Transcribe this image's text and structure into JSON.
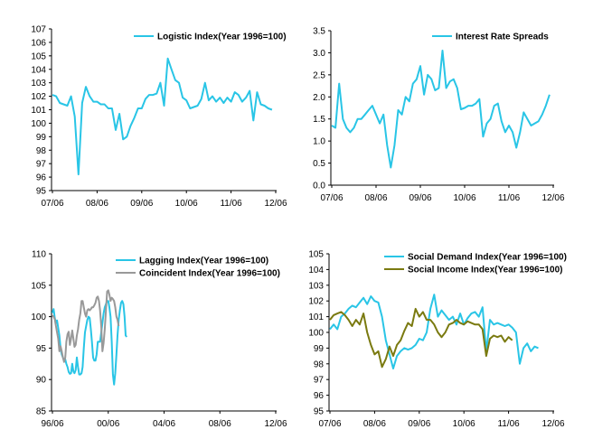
{
  "chart_data": [
    {
      "id": "logistic",
      "type": "line",
      "ylim": [
        95,
        107
      ],
      "yticks": [
        "95",
        "96",
        "97",
        "98",
        "99",
        "100",
        "101",
        "102",
        "103",
        "104",
        "105",
        "106",
        "107"
      ],
      "xlabels": [
        "07/06",
        "08/06",
        "09/06",
        "10/06",
        "11/06",
        "12/06"
      ],
      "xlabel_index": [
        0,
        12,
        24,
        36,
        48,
        60
      ],
      "legend_position": "top-right",
      "series": [
        {
          "name": "Logistic Index(Year 1996=100)",
          "color": "#29c5e6",
          "values": [
            102.1,
            102.0,
            101.5,
            101.4,
            101.3,
            102.0,
            100.5,
            96.2,
            101.5,
            102.7,
            102.0,
            101.6,
            101.6,
            101.4,
            101.4,
            101.1,
            101.1,
            99.5,
            100.7,
            98.8,
            99.0,
            99.8,
            100.4,
            101.1,
            101.1,
            101.8,
            102.1,
            102.1,
            102.2,
            103.0,
            101.3,
            104.8,
            104.0,
            103.2,
            103.0,
            101.9,
            101.7,
            101.1,
            101.2,
            101.3,
            101.8,
            103.0,
            101.7,
            102.0,
            101.6,
            101.9,
            101.5,
            101.9,
            101.6,
            102.3,
            102.1,
            101.6,
            101.9,
            102.4,
            100.2,
            102.3,
            101.4,
            101.3,
            101.1,
            101.0
          ]
        }
      ]
    },
    {
      "id": "spreads",
      "type": "line",
      "ylim": [
        0,
        3.5
      ],
      "yticks": [
        "0.0",
        "0.5",
        "1.0",
        "1.5",
        "2.0",
        "2.5",
        "3.0",
        "3.5"
      ],
      "xlabels": [
        "07/06",
        "08/06",
        "09/06",
        "10/06",
        "11/06",
        "12/06"
      ],
      "xlabel_index": [
        0,
        12,
        24,
        36,
        48,
        60
      ],
      "legend_position": "top-right",
      "series": [
        {
          "name": "Interest Rate Spreads",
          "color": "#29c5e6",
          "values": [
            1.35,
            1.3,
            2.3,
            1.5,
            1.3,
            1.2,
            1.3,
            1.5,
            1.5,
            1.6,
            1.7,
            1.8,
            1.6,
            1.4,
            1.6,
            0.9,
            0.4,
            0.9,
            1.7,
            1.6,
            2.0,
            1.9,
            2.3,
            2.4,
            2.7,
            2.05,
            2.5,
            2.4,
            2.15,
            2.2,
            3.05,
            2.2,
            2.35,
            2.4,
            2.2,
            1.72,
            1.75,
            1.8,
            1.8,
            1.85,
            1.95,
            1.1,
            1.4,
            1.5,
            1.8,
            1.85,
            1.45,
            1.2,
            1.35,
            1.2,
            0.85,
            1.2,
            1.65,
            1.5,
            1.35,
            1.4,
            1.45,
            1.6,
            1.8,
            2.05
          ]
        }
      ]
    },
    {
      "id": "lagging-coincident",
      "type": "line",
      "ylim": [
        85,
        110
      ],
      "yticks": [
        "85",
        "90",
        "95",
        "100",
        "105",
        "110"
      ],
      "xlabels": [
        "96/06",
        "00/06",
        "04/06",
        "08/06",
        "12/06"
      ],
      "xlabel_index": [
        0,
        48,
        96,
        144,
        192
      ],
      "legend_position": "top-right",
      "series": [
        {
          "name": "Lagging Index(Year 1996=100)",
          "color": "#29c5e6",
          "values": [
            100.6,
            101.2,
            99.8,
            99.0,
            99.4,
            98.2,
            97.0,
            95.0,
            94.0,
            93.5,
            93.0,
            93.2,
            92.5,
            92.0,
            91.2,
            90.9,
            91.0,
            92.5,
            91.3,
            91.0,
            91.5,
            93.5,
            92.0,
            90.8,
            90.8,
            91.0,
            92.0,
            95.0,
            97.5,
            98.5,
            99.5,
            100.0,
            99.8,
            98.0,
            96.0,
            93.5,
            93.0,
            93.0,
            94.0,
            96.0,
            96.0,
            96.0,
            97.5,
            99.0,
            100.5,
            101.5,
            102.0,
            102.5,
            102.5,
            101.5,
            100.0,
            96.0,
            90.8,
            89.2,
            91.0,
            94.0,
            97.0,
            99.5,
            101.0,
            102.2,
            102.5,
            102.0,
            100.0,
            97.0,
            96.8
          ]
        },
        {
          "name": "Coincident Index(Year 1996=100)",
          "color": "#999999",
          "values": [
            100.2,
            100.0,
            99.6,
            98.5,
            97.5,
            96.5,
            94.5,
            95.3,
            94.5,
            93.5,
            92.8,
            93.5,
            96.0,
            97.2,
            97.6,
            95.5,
            96.5,
            97.8,
            96.5,
            95.2,
            95.5,
            97.0,
            98.0,
            99.5,
            100.5,
            102.5,
            102.5,
            101.5,
            100.5,
            100.0,
            101.0,
            101.2,
            101.0,
            101.2,
            101.5,
            101.5,
            101.8,
            102.2,
            103.0,
            103.2,
            102.5,
            101.0,
            98.5,
            94.5,
            95.8,
            98.0,
            101.0,
            104.0,
            104.2,
            103.5,
            102.5,
            103.0,
            102.8,
            102.5,
            101.5,
            100.0,
            99.5,
            98.5
          ]
        }
      ]
    },
    {
      "id": "social",
      "type": "line",
      "ylim": [
        95,
        105
      ],
      "yticks": [
        "95",
        "96",
        "97",
        "98",
        "99",
        "100",
        "101",
        "102",
        "103",
        "104",
        "105"
      ],
      "xlabels": [
        "07/06",
        "08/06",
        "09/06",
        "10/06",
        "11/06",
        "12/06"
      ],
      "xlabel_index": [
        0,
        12,
        24,
        36,
        48,
        60
      ],
      "legend_position": "top-left",
      "series": [
        {
          "name": "Social Demand Index(Year 1996=100)",
          "color": "#29c5e6",
          "values": [
            100.2,
            100.5,
            100.2,
            101.0,
            101.2,
            101.5,
            101.7,
            101.6,
            101.9,
            102.2,
            101.8,
            102.3,
            102.0,
            101.9,
            101.0,
            99.5,
            98.6,
            97.7,
            98.5,
            98.8,
            99.0,
            98.9,
            99.0,
            99.2,
            99.6,
            99.5,
            100.0,
            101.5,
            102.4,
            101.0,
            101.4,
            101.1,
            100.8,
            101.0,
            100.5,
            101.2,
            100.5,
            100.9,
            101.2,
            101.3,
            101.0,
            101.6,
            98.8,
            100.8,
            100.5,
            100.6,
            100.5,
            100.4,
            100.5,
            100.3,
            100.0,
            98.0,
            99.0,
            99.3,
            98.8,
            99.1,
            99.0
          ]
        },
        {
          "name": "Social Income Index(Year 1996=100)",
          "color": "#7a7a10",
          "values": [
            100.8,
            101.1,
            101.2,
            101.3,
            101.1,
            100.8,
            100.4,
            100.8,
            100.5,
            101.2,
            100.0,
            99.2,
            98.6,
            98.8,
            97.8,
            98.3,
            99.1,
            98.5,
            99.2,
            99.5,
            100.1,
            100.6,
            100.4,
            101.5,
            101.0,
            101.3,
            100.8,
            100.8,
            100.5,
            100.0,
            99.7,
            100.0,
            100.5,
            100.6,
            100.8,
            100.6,
            100.5,
            100.7,
            100.6,
            100.5,
            100.5,
            100.2,
            98.5,
            99.6,
            99.8,
            99.7,
            99.8,
            99.4,
            99.7,
            99.5
          ]
        }
      ]
    }
  ]
}
